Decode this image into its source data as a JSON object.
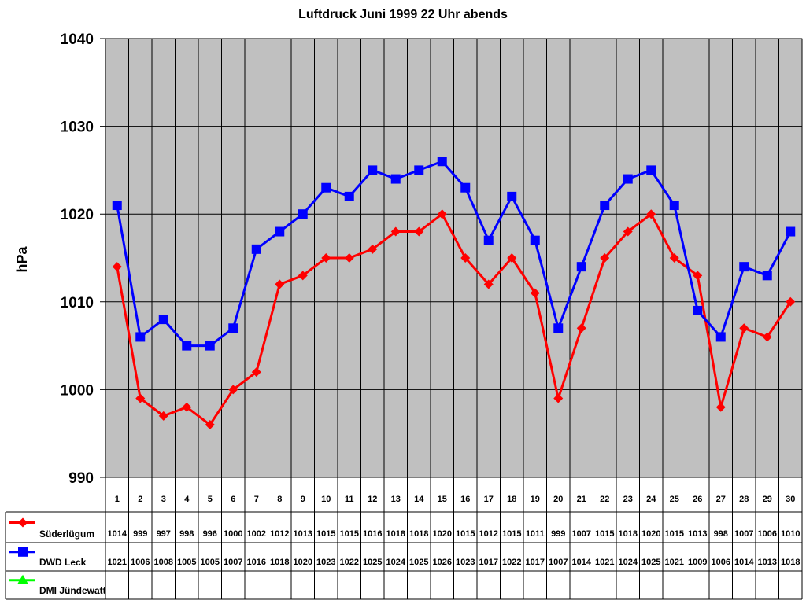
{
  "title": "Luftdruck Juni 1999 22 Uhr abends",
  "ylabel": "hPa",
  "colors": {
    "plot_bg": "#c0c0c0",
    "suederluegum": "#ff0000",
    "dwd_leck": "#0000ff",
    "dmi_juendewatt": "#00ff00"
  },
  "chart_data": {
    "type": "line",
    "title": "Luftdruck Juni 1999 22 Uhr abends",
    "xlabel": "",
    "ylabel": "hPa",
    "ylim": [
      990,
      1040
    ],
    "yticks": [
      990,
      1000,
      1010,
      1020,
      1030,
      1040
    ],
    "grid": true,
    "legend_position": "bottom-left data table",
    "categories": [
      "1",
      "2",
      "3",
      "4",
      "5",
      "6",
      "7",
      "8",
      "9",
      "10",
      "11",
      "12",
      "13",
      "14",
      "15",
      "16",
      "17",
      "18",
      "19",
      "20",
      "21",
      "22",
      "23",
      "24",
      "25",
      "26",
      "27",
      "28",
      "29",
      "30"
    ],
    "series": [
      {
        "name": "Süderlügum",
        "color": "#ff0000",
        "marker": "diamond",
        "values": [
          1014,
          999,
          997,
          998,
          996,
          1000,
          1002,
          1012,
          1013,
          1015,
          1015,
          1016,
          1018,
          1018,
          1020,
          1015,
          1012,
          1015,
          1011,
          999,
          1007,
          1015,
          1018,
          1020,
          1015,
          1013,
          998,
          1007,
          1006,
          1010
        ]
      },
      {
        "name": "DWD Leck",
        "color": "#0000ff",
        "marker": "square",
        "values": [
          1021,
          1006,
          1008,
          1005,
          1005,
          1007,
          1016,
          1018,
          1020,
          1023,
          1022,
          1025,
          1024,
          1025,
          1026,
          1023,
          1017,
          1022,
          1017,
          1007,
          1014,
          1021,
          1024,
          1025,
          1021,
          1009,
          1006,
          1014,
          1013,
          1018
        ]
      },
      {
        "name": "DMI Jündewatt",
        "color": "#00ff00",
        "marker": "triangle",
        "values": []
      }
    ]
  }
}
